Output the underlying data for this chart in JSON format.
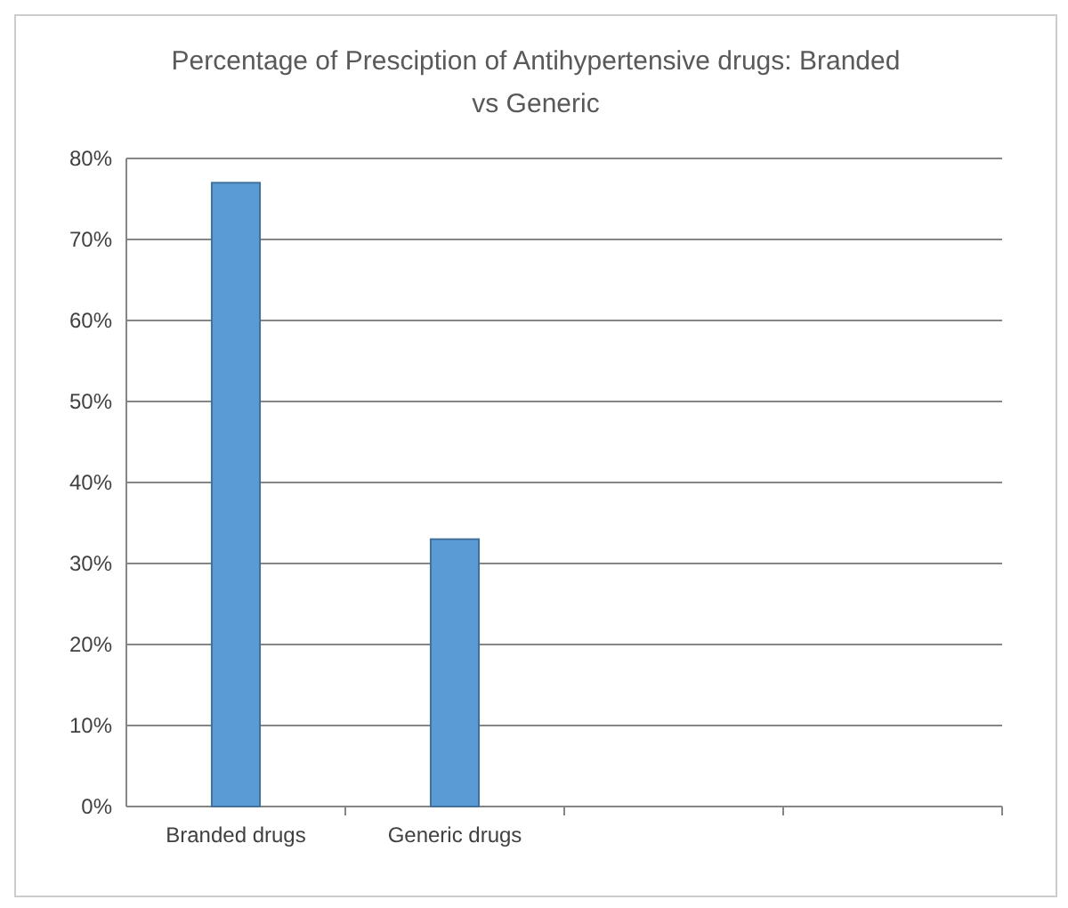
{
  "chart_data": {
    "type": "bar",
    "title": "Percentage of Presciption of Antihypertensive drugs: Branded vs Generic",
    "categories": [
      "Branded drugs",
      "Generic drugs",
      null,
      null
    ],
    "values": [
      77,
      33,
      null,
      null
    ],
    "color": "#5b9bd5",
    "ylim": [
      0,
      80
    ],
    "yticks": [
      {
        "value": 0,
        "label": "0%"
      },
      {
        "value": 10,
        "label": "10%"
      },
      {
        "value": 20,
        "label": "20%"
      },
      {
        "value": 30,
        "label": "30%"
      },
      {
        "value": 40,
        "label": "40%"
      },
      {
        "value": 50,
        "label": "50%"
      },
      {
        "value": 60,
        "label": "60%"
      },
      {
        "value": 70,
        "label": "70%"
      },
      {
        "value": 80,
        "label": "80%"
      }
    ],
    "grid": "y"
  }
}
